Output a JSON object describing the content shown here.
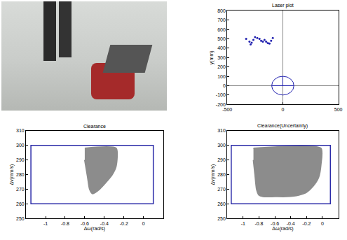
{
  "chart_data": [
    {
      "type": "scatter",
      "title": "Laser plot",
      "ylabel": "y(mm)",
      "xlim": [
        -500,
        500
      ],
      "xticks": [
        -500,
        0,
        500
      ],
      "ylim": [
        -200,
        800
      ],
      "yticks": [
        -200,
        -100,
        0,
        100,
        200,
        300,
        400,
        500,
        600,
        700,
        800
      ],
      "grid": false,
      "x": [
        -330,
        -300,
        -290,
        -280,
        -265,
        -250,
        -230,
        -210,
        -195,
        -180,
        -165,
        -150,
        -135,
        -120,
        -105,
        -90
      ],
      "y": [
        500,
        470,
        440,
        460,
        490,
        520,
        510,
        500,
        480,
        470,
        490,
        470,
        455,
        450,
        480,
        510
      ],
      "color": "#2323b0",
      "marker": "dot",
      "robot": {
        "x": 0,
        "y": 0,
        "radius": 100,
        "color": "#2323b0"
      }
    },
    {
      "type": "area",
      "title": "Clearance",
      "xlabel": "Δω(rad/s)",
      "ylabel": "Δv(mm/s)",
      "xlim": [
        -1.2,
        0.2
      ],
      "xticks": [
        -1,
        -0.8,
        -0.6,
        -0.4,
        -0.2,
        0
      ],
      "ylim": [
        250,
        310
      ],
      "yticks": [
        250,
        260,
        270,
        280,
        290,
        300,
        310
      ],
      "grid": false,
      "window": {
        "x": [
          -1.15,
          0.1
        ],
        "y": [
          260,
          300
        ],
        "color": "#2b2ba8"
      },
      "region": {
        "x": [
          -0.6,
          -0.28,
          -0.28,
          -0.32,
          -0.38,
          -0.45,
          -0.52,
          -0.55,
          -0.57,
          -0.6
        ],
        "y": [
          298,
          298,
          286,
          280,
          275,
          270,
          267,
          270,
          278,
          290
        ],
        "color": "#808080"
      }
    },
    {
      "type": "area",
      "title": "Clearance(Uncertainty)",
      "xlabel": "Δω(rad/s)",
      "ylabel": "Δv(mm/s)",
      "xlim": [
        -1.2,
        0.2
      ],
      "xticks": [
        -1,
        -0.8,
        -0.6,
        -0.4,
        -0.2,
        0
      ],
      "ylim": [
        250,
        310
      ],
      "yticks": [
        250,
        260,
        270,
        280,
        290,
        300,
        310
      ],
      "grid": false,
      "window": {
        "x": [
          -1.15,
          0.1
        ],
        "y": [
          260,
          300
        ],
        "color": "#2b2ba8"
      },
      "region": {
        "x": [
          -0.87,
          -0.02,
          -0.02,
          -0.05,
          -0.12,
          -0.2,
          -0.3,
          -0.45,
          -0.6,
          -0.75,
          -0.8,
          -0.83,
          -0.85,
          -0.87
        ],
        "y": [
          298,
          298,
          287,
          278,
          272,
          268,
          266,
          265,
          265,
          265,
          266,
          270,
          280,
          290
        ],
        "color": "#808080"
      }
    }
  ]
}
